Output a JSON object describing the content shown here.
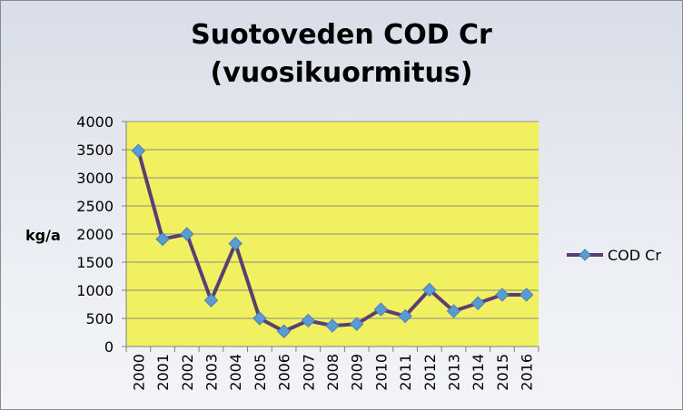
{
  "chart_data": {
    "type": "line",
    "title": "Suotoveden COD Cr\n(vuosikuormitus)",
    "ylabel": "kg/a",
    "xlabel": "",
    "ylim": [
      0,
      4000
    ],
    "yticks": [
      0,
      500,
      1000,
      1500,
      2000,
      2500,
      3000,
      3500,
      4000
    ],
    "grid": true,
    "legend_position": "right",
    "plot_background": "#f0f060",
    "line_color": "#5b3f73",
    "marker_color": "#5b9bd5",
    "categories": [
      "2000",
      "2001",
      "2002",
      "2003",
      "2004",
      "2005",
      "2006",
      "2007",
      "2008",
      "2009",
      "2010",
      "2011",
      "2012",
      "2013",
      "2014",
      "2015",
      "2016"
    ],
    "series": [
      {
        "name": "COD Cr",
        "values": [
          3480,
          1910,
          2000,
          820,
          1830,
          500,
          270,
          460,
          370,
          400,
          660,
          540,
          1010,
          630,
          770,
          920,
          920
        ]
      }
    ]
  }
}
